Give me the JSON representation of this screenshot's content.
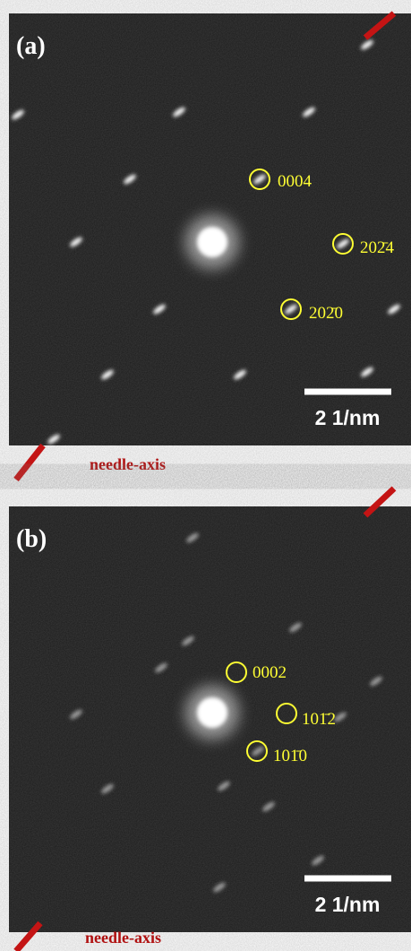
{
  "panels": [
    {
      "tag": "(a)",
      "scale_bar": "2 1/nm",
      "axis_label": "needle-axis",
      "spots": [
        {
          "label": "0004"
        },
        {
          "label": "202̄4"
        },
        {
          "label": "202̄0"
        }
      ]
    },
    {
      "tag": "(b)",
      "scale_bar": "2 1/nm",
      "axis_label": "needle-axis",
      "spots": [
        {
          "label": "0002"
        },
        {
          "label": "101̄2"
        },
        {
          "label": "101̄0"
        }
      ]
    }
  ]
}
